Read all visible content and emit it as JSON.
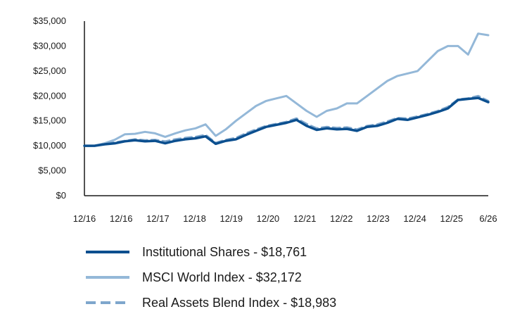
{
  "chart_data": {
    "type": "line",
    "title": "",
    "xlabel": "",
    "ylabel": "",
    "ylim": [
      0,
      35000
    ],
    "yticks": [
      "$0",
      "$5,000",
      "$10,000",
      "$15,000",
      "$20,000",
      "$25,000",
      "$30,000",
      "$35,000"
    ],
    "xticks": [
      "12/16",
      "12/16",
      "12/17",
      "12/18",
      "12/19",
      "12/20",
      "12/21",
      "12/22",
      "12/23",
      "12/24",
      "12/25",
      "6/26"
    ],
    "grid": false,
    "legend_position": "bottom",
    "series": [
      {
        "name": "Institutional Shares - $18,761",
        "color": "#0b4f8f",
        "style": "solid",
        "points": [
          [
            "12/16",
            10000
          ],
          [
            "12/16",
            10000
          ],
          [
            "12/16",
            10300
          ],
          [
            "12/16",
            10500
          ],
          [
            "12/17",
            10900
          ],
          [
            "12/17",
            11100
          ],
          [
            "12/17",
            10900
          ],
          [
            "12/17",
            11000
          ],
          [
            "12/18",
            10500
          ],
          [
            "12/18",
            11000
          ],
          [
            "12/18",
            11300
          ],
          [
            "12/18",
            11500
          ],
          [
            "12/19",
            11900
          ],
          [
            "12/19",
            10400
          ],
          [
            "12/19",
            11000
          ],
          [
            "12/19",
            11300
          ],
          [
            "12/20",
            12200
          ],
          [
            "12/20",
            13000
          ],
          [
            "12/20",
            13800
          ],
          [
            "12/20",
            14200
          ],
          [
            "12/21",
            14600
          ],
          [
            "12/21",
            15200
          ],
          [
            "12/21",
            14000
          ],
          [
            "12/21",
            13200
          ],
          [
            "12/22",
            13500
          ],
          [
            "12/22",
            13300
          ],
          [
            "12/22",
            13400
          ],
          [
            "12/22",
            13000
          ],
          [
            "12/23",
            13800
          ],
          [
            "12/23",
            14000
          ],
          [
            "12/23",
            14600
          ],
          [
            "12/23",
            15400
          ],
          [
            "12/24",
            15200
          ],
          [
            "12/24",
            15700
          ],
          [
            "12/24",
            16200
          ],
          [
            "12/24",
            16800
          ],
          [
            "12/25",
            17500
          ],
          [
            "12/25",
            19200
          ],
          [
            "12/25",
            19400
          ],
          [
            "12/25",
            19600
          ],
          [
            "6/26",
            18761
          ]
        ]
      },
      {
        "name": "MSCI World Index - $32,172",
        "color": "#94b8d8",
        "style": "solid",
        "points": [
          [
            "12/16",
            10000
          ],
          [
            "12/16",
            10000
          ],
          [
            "12/16",
            10500
          ],
          [
            "12/16",
            11200
          ],
          [
            "12/17",
            12300
          ],
          [
            "12/17",
            12400
          ],
          [
            "12/17",
            12800
          ],
          [
            "12/17",
            12500
          ],
          [
            "12/18",
            11800
          ],
          [
            "12/18",
            12500
          ],
          [
            "12/18",
            13100
          ],
          [
            "12/18",
            13500
          ],
          [
            "12/19",
            14300
          ],
          [
            "12/19",
            12000
          ],
          [
            "12/19",
            13300
          ],
          [
            "12/19",
            15000
          ],
          [
            "12/20",
            16500
          ],
          [
            "12/20",
            18000
          ],
          [
            "12/20",
            19000
          ],
          [
            "12/20",
            19500
          ],
          [
            "12/21",
            20000
          ],
          [
            "12/21",
            18500
          ],
          [
            "12/21",
            17000
          ],
          [
            "12/21",
            15800
          ],
          [
            "12/22",
            17000
          ],
          [
            "12/22",
            17500
          ],
          [
            "12/22",
            18500
          ],
          [
            "12/22",
            18500
          ],
          [
            "12/23",
            20000
          ],
          [
            "12/23",
            21500
          ],
          [
            "12/23",
            23000
          ],
          [
            "12/23",
            24000
          ],
          [
            "12/24",
            24500
          ],
          [
            "12/24",
            25000
          ],
          [
            "12/24",
            27000
          ],
          [
            "12/24",
            29000
          ],
          [
            "12/25",
            30000
          ],
          [
            "12/25",
            30000
          ],
          [
            "12/25",
            28300
          ],
          [
            "12/25",
            32500
          ],
          [
            "6/26",
            32172
          ]
        ]
      },
      {
        "name": "Real Assets Blend Index - $18,983",
        "color": "#7ea6cc",
        "style": "dashed",
        "points": [
          [
            "12/16",
            10000
          ],
          [
            "12/16",
            10000
          ],
          [
            "12/16",
            10400
          ],
          [
            "12/16",
            10700
          ],
          [
            "12/17",
            11000
          ],
          [
            "12/17",
            11300
          ],
          [
            "12/17",
            11100
          ],
          [
            "12/17",
            11200
          ],
          [
            "12/18",
            10900
          ],
          [
            "12/18",
            11300
          ],
          [
            "12/18",
            11600
          ],
          [
            "12/18",
            11800
          ],
          [
            "12/19",
            12200
          ],
          [
            "12/19",
            10600
          ],
          [
            "12/19",
            11200
          ],
          [
            "12/19",
            11600
          ],
          [
            "12/20",
            12500
          ],
          [
            "12/20",
            13300
          ],
          [
            "12/20",
            14000
          ],
          [
            "12/20",
            14400
          ],
          [
            "12/21",
            14800
          ],
          [
            "12/21",
            15500
          ],
          [
            "12/21",
            14400
          ],
          [
            "12/21",
            13500
          ],
          [
            "12/22",
            13800
          ],
          [
            "12/22",
            13600
          ],
          [
            "12/22",
            13700
          ],
          [
            "12/22",
            13300
          ],
          [
            "12/23",
            14000
          ],
          [
            "12/23",
            14300
          ],
          [
            "12/23",
            14900
          ],
          [
            "12/23",
            15600
          ],
          [
            "12/24",
            15500
          ],
          [
            "12/24",
            15900
          ],
          [
            "12/24",
            16400
          ],
          [
            "12/24",
            17000
          ],
          [
            "12/25",
            17800
          ],
          [
            "12/25",
            19300
          ],
          [
            "12/25",
            19500
          ],
          [
            "12/25",
            20000
          ],
          [
            "6/26",
            18983
          ]
        ]
      }
    ]
  }
}
